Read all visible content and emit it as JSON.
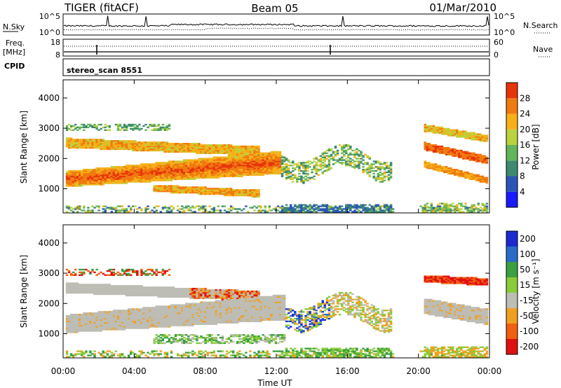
{
  "header": {
    "title": "TIGER (fitACF)",
    "beam": "Beam 05",
    "date": "01/Mar/2010"
  },
  "nsky_panel": {
    "left_label": "N.Sky",
    "left_ticks": [
      "10^5",
      "10^0"
    ],
    "right_ticks": [
      "10^5",
      "10^0"
    ],
    "right_label": "N.Search"
  },
  "freq_panel": {
    "left_label_line1": "Freq.",
    "left_label_line2": "[MHz]",
    "left_ticks": [
      "18",
      "8"
    ],
    "right_ticks": [
      "60",
      "0"
    ],
    "right_label": "Nave"
  },
  "cpid_panel": {
    "label": "CPID",
    "program": "stereo_scan 8551"
  },
  "x_axis": {
    "ticks": [
      "00:00",
      "04:00",
      "08:00",
      "12:00",
      "16:00",
      "20:00",
      "00:00"
    ],
    "label": "Time UT"
  },
  "chart_data": [
    {
      "type": "heatmap",
      "name": "power",
      "ylabel": "Slant Range [km]",
      "yticks": [
        1000,
        2000,
        3000,
        4000
      ],
      "ylim": [
        200,
        4600
      ],
      "xlim_hours": [
        0,
        24
      ],
      "colorbar": {
        "label": "Power [dB]",
        "ticks": [
          4,
          8,
          12,
          16,
          20,
          24,
          28
        ],
        "range": [
          0,
          32
        ],
        "colors": [
          "#1a1aff",
          "#2a55b8",
          "#3d8a70",
          "#63b45a",
          "#bcd23c",
          "#f7b017",
          "#f07a10",
          "#e8340a"
        ]
      },
      "features": [
        {
          "desc": "strong band",
          "t_start": 0.2,
          "t_end": 12.2,
          "range_start": 1150,
          "range_end": 1800,
          "power": 28
        },
        {
          "desc": "upper band",
          "t_start": 0.2,
          "t_end": 11.5,
          "range_start": 2300,
          "range_end": 2700,
          "power": 20
        },
        {
          "desc": "evening band",
          "t_start": 20.2,
          "t_end": 24,
          "range_start": 1300,
          "range_end": 2300,
          "power": 26
        }
      ]
    },
    {
      "type": "heatmap",
      "name": "velocity",
      "ylabel": "Slant Range [km]",
      "yticks": [
        1000,
        2000,
        3000,
        4000
      ],
      "ylim": [
        200,
        4600
      ],
      "xlim_hours": [
        0,
        24
      ],
      "colorbar": {
        "label": "Velocity [m s⁻¹]",
        "ticks": [
          200,
          100,
          50,
          15,
          -15,
          -50,
          -100,
          -200
        ],
        "colors": [
          "#1a2ad0",
          "#2a6cc8",
          "#3aa040",
          "#8acb3a",
          "#bdbdb5",
          "#f0a020",
          "#f06010",
          "#e01010"
        ]
      }
    }
  ]
}
